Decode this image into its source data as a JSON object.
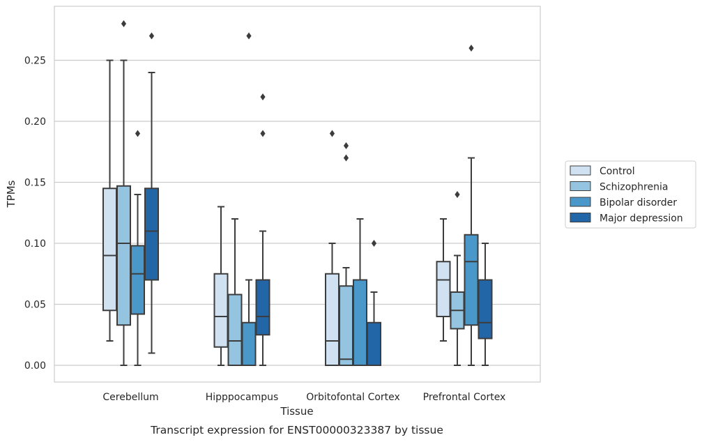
{
  "chart_data": {
    "type": "box",
    "caption": "Transcript expression for ENST00000323387 by tissue",
    "xlabel": "Tissue",
    "ylabel": "TPMs",
    "ylim": [
      -0.014,
      0.295
    ],
    "yticks": [
      0.0,
      0.05,
      0.1,
      0.15,
      0.2,
      0.25
    ],
    "ytick_labels": [
      "0.00",
      "0.05",
      "0.10",
      "0.15",
      "0.20",
      "0.25"
    ],
    "grid": "horizontal",
    "legend_position": "right-outside",
    "categories": [
      "Cerebellum",
      "Hipppocampus",
      "Orbitofontal Cortex",
      "Prefrontal Cortex"
    ],
    "series": [
      {
        "name": "Control",
        "color": "#d0e1f2",
        "boxes": [
          {
            "whislo": 0.02,
            "q1": 0.045,
            "med": 0.09,
            "q3": 0.145,
            "whishi": 0.25,
            "fliers": []
          },
          {
            "whislo": 0.0,
            "q1": 0.015,
            "med": 0.04,
            "q3": 0.075,
            "whishi": 0.13,
            "fliers": []
          },
          {
            "whislo": 0.0,
            "q1": 0.0,
            "med": 0.02,
            "q3": 0.075,
            "whishi": 0.1,
            "fliers": [
              0.19
            ]
          },
          {
            "whislo": 0.02,
            "q1": 0.04,
            "med": 0.07,
            "q3": 0.085,
            "whishi": 0.12,
            "fliers": []
          }
        ]
      },
      {
        "name": "Schizophrenia",
        "color": "#94c4df",
        "boxes": [
          {
            "whislo": 0.0,
            "q1": 0.033,
            "med": 0.1,
            "q3": 0.147,
            "whishi": 0.25,
            "fliers": [
              0.28
            ]
          },
          {
            "whislo": 0.0,
            "q1": 0.0,
            "med": 0.02,
            "q3": 0.058,
            "whishi": 0.12,
            "fliers": []
          },
          {
            "whislo": 0.0,
            "q1": 0.0,
            "med": 0.005,
            "q3": 0.065,
            "whishi": 0.08,
            "fliers": [
              0.18,
              0.17
            ]
          },
          {
            "whislo": 0.0,
            "q1": 0.03,
            "med": 0.045,
            "q3": 0.06,
            "whishi": 0.09,
            "fliers": [
              0.14
            ]
          }
        ]
      },
      {
        "name": "Bipolar disorder",
        "color": "#4a98c9",
        "boxes": [
          {
            "whislo": 0.0,
            "q1": 0.042,
            "med": 0.075,
            "q3": 0.098,
            "whishi": 0.14,
            "fliers": [
              0.19
            ]
          },
          {
            "whislo": 0.0,
            "q1": 0.0,
            "med": 0.0,
            "q3": 0.035,
            "whishi": 0.07,
            "fliers": [
              0.27
            ]
          },
          {
            "whislo": 0.0,
            "q1": 0.0,
            "med": 0.0,
            "q3": 0.07,
            "whishi": 0.12,
            "fliers": []
          },
          {
            "whislo": 0.0,
            "q1": 0.033,
            "med": 0.085,
            "q3": 0.107,
            "whishi": 0.17,
            "fliers": [
              0.26
            ]
          }
        ]
      },
      {
        "name": "Major depression",
        "color": "#2366a8",
        "boxes": [
          {
            "whislo": 0.01,
            "q1": 0.07,
            "med": 0.11,
            "q3": 0.145,
            "whishi": 0.24,
            "fliers": [
              0.27
            ]
          },
          {
            "whislo": 0.0,
            "q1": 0.025,
            "med": 0.04,
            "q3": 0.07,
            "whishi": 0.11,
            "fliers": [
              0.22,
              0.19
            ]
          },
          {
            "whislo": 0.0,
            "q1": 0.0,
            "med": 0.0,
            "q3": 0.035,
            "whishi": 0.06,
            "fliers": [
              0.1
            ]
          },
          {
            "whislo": 0.0,
            "q1": 0.022,
            "med": 0.035,
            "q3": 0.07,
            "whishi": 0.1,
            "fliers": []
          }
        ]
      }
    ]
  }
}
